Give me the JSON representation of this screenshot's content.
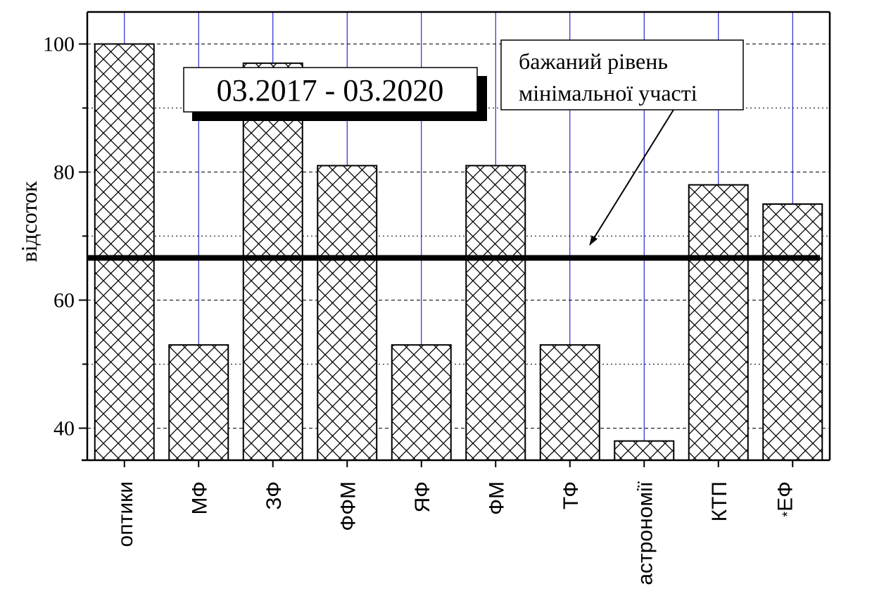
{
  "chart_data": {
    "type": "bar",
    "categories": [
      "оптики",
      "МФ",
      "ЗФ",
      "ФФМ",
      "ЯФ",
      "ФМ",
      "ТФ",
      "астрономії",
      "КТП",
      "ЕФ"
    ],
    "category_superscripts": [
      "",
      "",
      "",
      "",
      "",
      "",
      "",
      "",
      "",
      "*"
    ],
    "values": [
      100,
      53,
      97,
      81,
      53,
      81,
      53,
      38,
      78,
      75
    ],
    "ylabel": "відсоток",
    "xlabel": "",
    "ylim": [
      35,
      105
    ],
    "yticks": [
      40,
      60,
      80,
      100
    ],
    "grid": true,
    "bar_pattern": "crosshatch",
    "reference_line": {
      "value": 66.6
    },
    "annotations": {
      "period_label": "03.2017 - 03.2020",
      "reference_note_line1": "бажаний рівень",
      "reference_note_line2": "мінімальної участі"
    },
    "colors": {
      "bar_fill": "#ffffff",
      "bar_hatch": "#000000",
      "vertical_grid": "#0000cc",
      "horizontal_grid": "#000000"
    }
  }
}
